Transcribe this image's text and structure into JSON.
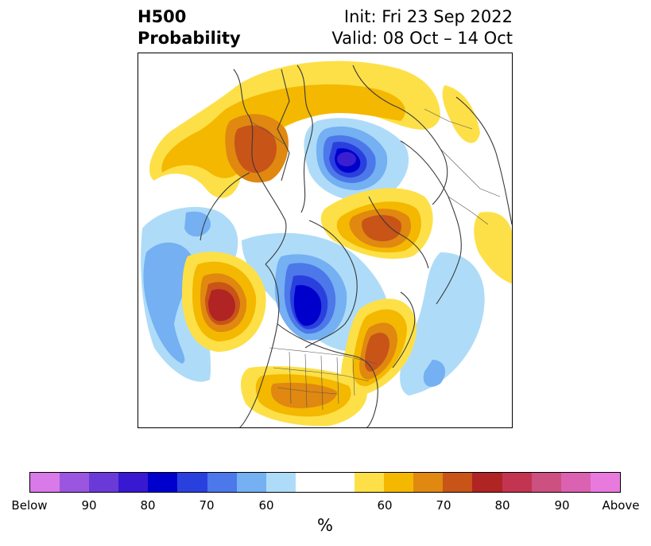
{
  "title": {
    "left_line1": "H500",
    "left_line2": "Probability",
    "right_line1": "Init: Fri 23 Sep 2022",
    "right_line2": "Valid: 08 Oct – 14 Oct"
  },
  "map": {
    "projection": "polar stereographic (north pole)",
    "field": "500 hPa height probability anomaly"
  },
  "colorbar": {
    "label": "%",
    "ticks": [
      "Below",
      "90",
      "80",
      "70",
      "60",
      "60",
      "70",
      "80",
      "90",
      "Above"
    ],
    "colors": [
      "#d87ae8",
      "#9b56e0",
      "#6a3ad8",
      "#3818d0",
      "#0000cc",
      "#2a40de",
      "#4c78ea",
      "#74b0f2",
      "#aedcf8",
      "#ffffff",
      "#fde047",
      "#f4b800",
      "#e08810",
      "#c85418",
      "#b02424",
      "#c23450",
      "#cc5080",
      "#da62b0",
      "#e87ade"
    ]
  },
  "palette": {
    "below_95": "#3a1fd0",
    "below_90": "#0000cc",
    "below_85": "#2a40de",
    "below_75": "#4c78ea",
    "below_65": "#74b0f2",
    "below_60": "#aedcf8",
    "above_60": "#fde047",
    "above_65": "#f4b800",
    "above_75": "#e08810",
    "above_80": "#c85418",
    "above_90": "#b02424",
    "coast": "#3a3a3a"
  }
}
